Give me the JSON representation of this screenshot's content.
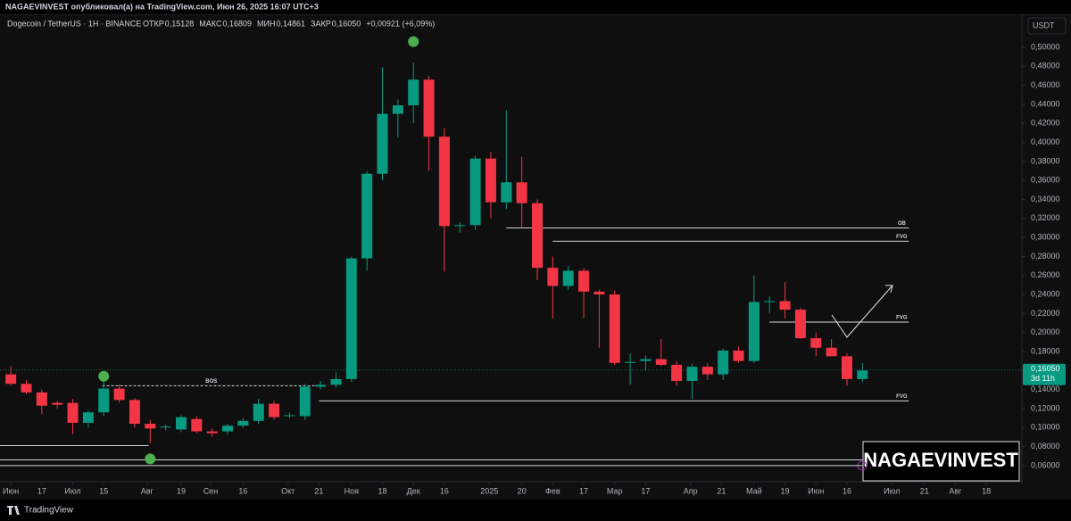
{
  "chart_data": {
    "type": "candlestick",
    "published": "NAGAEVINVEST опубликовал(а) на TradingView.com, Июн 26, 2025 16:07 UTC+3",
    "title": "Dogecoin / TetherUS · 1H · BINANCE",
    "ohlc_legend": [
      {
        "label": "ОТКР",
        "text": "0,15128"
      },
      {
        "label": "МАКС",
        "text": "0,16809"
      },
      {
        "label": "МИН",
        "text": "0,14861"
      },
      {
        "label": "ЗАКР",
        "text": "0,16050"
      }
    ],
    "change": "+0,00921 (+6,09%)",
    "currency": "USDT",
    "watermark": "NAGAEVINVEST",
    "brand": "TradingView",
    "up_color": "#089981",
    "down_color": "#f23645",
    "x": [
      0,
      1,
      2,
      3,
      4,
      5,
      6,
      7,
      8,
      9,
      10,
      11,
      12,
      13,
      14,
      15,
      16,
      17,
      18,
      19,
      20,
      21,
      22,
      23,
      24,
      25,
      26,
      27,
      28,
      29,
      30,
      31,
      32,
      33,
      34,
      35,
      36,
      37,
      38,
      39,
      40,
      41,
      42,
      43,
      44,
      45,
      46,
      47,
      48,
      49,
      50,
      51,
      52,
      53,
      54,
      55
    ],
    "open": [
      0.156,
      0.146,
      0.137,
      0.126,
      0.126,
      0.105,
      0.116,
      0.141,
      0.129,
      0.104,
      0.1,
      0.098,
      0.109,
      0.096,
      0.096,
      0.102,
      0.107,
      0.125,
      0.112,
      0.112,
      0.143,
      0.145,
      0.151,
      0.278,
      0.367,
      0.43,
      0.439,
      0.466,
      0.406,
      0.312,
      0.313,
      0.383,
      0.337,
      0.358,
      0.336,
      0.268,
      0.249,
      0.265,
      0.243,
      0.24,
      0.168,
      0.17,
      0.172,
      0.166,
      0.149,
      0.164,
      0.156,
      0.181,
      0.17,
      0.232,
      0.233,
      0.224,
      0.194,
      0.184,
      0.175,
      0.151
    ],
    "high": [
      0.165,
      0.15,
      0.14,
      0.128,
      0.13,
      0.118,
      0.154,
      0.145,
      0.131,
      0.108,
      0.103,
      0.113,
      0.112,
      0.099,
      0.104,
      0.11,
      0.13,
      0.128,
      0.116,
      0.146,
      0.149,
      0.158,
      0.28,
      0.37,
      0.479,
      0.445,
      0.484,
      0.47,
      0.415,
      0.316,
      0.386,
      0.39,
      0.434,
      0.385,
      0.34,
      0.28,
      0.27,
      0.268,
      0.245,
      0.244,
      0.178,
      0.176,
      0.193,
      0.17,
      0.167,
      0.168,
      0.183,
      0.185,
      0.26,
      0.238,
      0.253,
      0.226,
      0.2,
      0.193,
      0.178,
      0.168
    ],
    "low": [
      0.144,
      0.135,
      0.114,
      0.12,
      0.093,
      0.1,
      0.112,
      0.126,
      0.1,
      0.084,
      0.097,
      0.095,
      0.094,
      0.09,
      0.093,
      0.1,
      0.104,
      0.108,
      0.11,
      0.108,
      0.14,
      0.142,
      0.148,
      0.265,
      0.36,
      0.405,
      0.42,
      0.37,
      0.264,
      0.305,
      0.308,
      0.32,
      0.33,
      0.31,
      0.255,
      0.215,
      0.245,
      0.215,
      0.184,
      0.166,
      0.145,
      0.16,
      0.165,
      0.144,
      0.13,
      0.15,
      0.15,
      0.168,
      0.168,
      0.22,
      0.215,
      0.193,
      0.175,
      0.175,
      0.144,
      0.148
    ],
    "close": [
      0.146,
      0.137,
      0.123,
      0.124,
      0.105,
      0.116,
      0.141,
      0.129,
      0.104,
      0.099,
      0.101,
      0.111,
      0.096,
      0.094,
      0.102,
      0.107,
      0.125,
      0.111,
      0.113,
      0.143,
      0.145,
      0.151,
      0.278,
      0.367,
      0.43,
      0.439,
      0.466,
      0.406,
      0.312,
      0.313,
      0.383,
      0.337,
      0.358,
      0.336,
      0.268,
      0.249,
      0.265,
      0.243,
      0.24,
      0.168,
      0.169,
      0.172,
      0.166,
      0.149,
      0.164,
      0.156,
      0.181,
      0.17,
      0.232,
      0.233,
      0.224,
      0.194,
      0.184,
      0.175,
      0.151,
      0.16
    ],
    "last_price": {
      "value": 0.1605,
      "label": "0,16050"
    },
    "countdown": "3d 11h",
    "levels": [
      {
        "label": "OB",
        "value": 0.31,
        "x": [
          32,
          58
        ]
      },
      {
        "label": "FVG",
        "value": 0.296,
        "x": [
          35,
          58
        ]
      },
      {
        "label": "FVG",
        "value": 0.211,
        "x": [
          49,
          58
        ]
      },
      {
        "label": "FVG",
        "value": 0.128,
        "x": [
          19.9,
          58
        ]
      },
      {
        "label": "BOS",
        "value": 0.144,
        "x": [
          5.9,
          20
        ],
        "dashed": true
      },
      {
        "value": 0.081,
        "x": [
          -0.7,
          8.9
        ]
      },
      {
        "value": 0.066,
        "x": [
          -0.7,
          55
        ]
      },
      {
        "value": 0.06,
        "x": [
          -0.7,
          55
        ]
      }
    ],
    "markers": [
      {
        "x": 26,
        "value": 0.506
      },
      {
        "x": 6,
        "value": 0.154
      },
      {
        "x": 9,
        "value": 0.067
      }
    ],
    "marker_color": "#4caf50",
    "xlim": [
      -0.7,
      65.3
    ],
    "ylim": [
      0.043,
      0.531
    ],
    "xticks": [
      {
        "value": 0,
        "label": "Июн"
      },
      {
        "value": 2,
        "label": "17"
      },
      {
        "value": 4,
        "label": "Июл"
      },
      {
        "value": 6,
        "label": "15"
      },
      {
        "value": 8.8,
        "label": "Авг"
      },
      {
        "value": 11,
        "label": "19"
      },
      {
        "value": 12.9,
        "label": "Сен"
      },
      {
        "value": 15,
        "label": "16"
      },
      {
        "value": 17.9,
        "label": "Окт"
      },
      {
        "value": 19.9,
        "label": "21"
      },
      {
        "value": 22,
        "label": "Ноя"
      },
      {
        "value": 24,
        "label": "18"
      },
      {
        "value": 26,
        "label": "Дек"
      },
      {
        "value": 28,
        "label": "16"
      },
      {
        "value": 30.9,
        "label": "2025"
      },
      {
        "value": 33,
        "label": "20"
      },
      {
        "value": 35,
        "label": "Фев"
      },
      {
        "value": 37,
        "label": "17"
      },
      {
        "value": 39,
        "label": "Мар"
      },
      {
        "value": 41,
        "label": "17"
      },
      {
        "value": 43.9,
        "label": "Апр"
      },
      {
        "value": 45.9,
        "label": "21"
      },
      {
        "value": 48,
        "label": "Май"
      },
      {
        "value": 50,
        "label": "19"
      },
      {
        "value": 52,
        "label": "Июн"
      },
      {
        "value": 54,
        "label": "16"
      },
      {
        "value": 56.9,
        "label": "Июл"
      },
      {
        "value": 59,
        "label": "21"
      },
      {
        "value": 61,
        "label": "Авг"
      },
      {
        "value": 63,
        "label": "18"
      }
    ],
    "yticks": [
      {
        "value": 0.06,
        "label": "0,06000"
      },
      {
        "value": 0.08,
        "label": "0,08000"
      },
      {
        "value": 0.1,
        "label": "0,10000"
      },
      {
        "value": 0.12,
        "label": "0,12000"
      },
      {
        "value": 0.14,
        "label": "0,14000"
      },
      {
        "value": 0.16,
        "label": "0,16000"
      },
      {
        "value": 0.18,
        "label": "0,18000"
      },
      {
        "value": 0.2,
        "label": "0,20000"
      },
      {
        "value": 0.22,
        "label": "0,22000"
      },
      {
        "value": 0.24,
        "label": "0,24000"
      },
      {
        "value": 0.26,
        "label": "0,26000"
      },
      {
        "value": 0.28,
        "label": "0,28000"
      },
      {
        "value": 0.3,
        "label": "0,30000"
      },
      {
        "value": 0.32,
        "label": "0,32000"
      },
      {
        "value": 0.34,
        "label": "0,34000"
      },
      {
        "value": 0.36,
        "label": "0,36000"
      },
      {
        "value": 0.38,
        "label": "0,38000"
      },
      {
        "value": 0.4,
        "label": "0,40000"
      },
      {
        "value": 0.42,
        "label": "0,42000"
      },
      {
        "value": 0.44,
        "label": "0,44000"
      },
      {
        "value": 0.46,
        "label": "0,46000"
      },
      {
        "value": 0.48,
        "label": "0,48000"
      },
      {
        "value": 0.5,
        "label": "0,50000"
      }
    ]
  }
}
